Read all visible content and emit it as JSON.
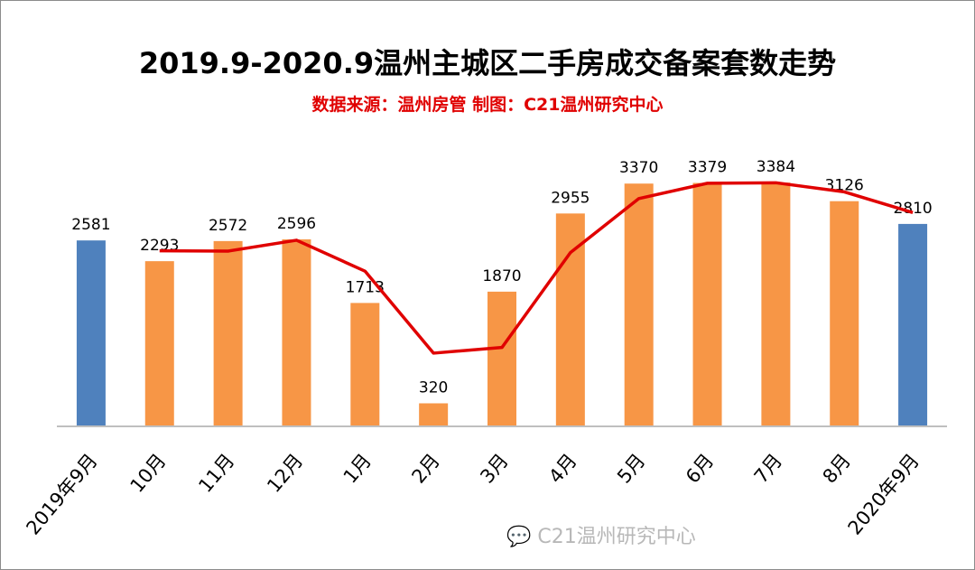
{
  "chart_data": {
    "type": "bar",
    "title": "2019.9-2020.9温州主城区二手房成交备案套数走势",
    "subtitle": "数据来源：温州房管  制图：C21温州研究中心",
    "categories": [
      "2019年9月",
      "10月",
      "11月",
      "12月",
      "1月",
      "2月",
      "3月",
      "4月",
      "5月",
      "6月",
      "7月",
      "8月",
      "2020年9月"
    ],
    "values": [
      2581,
      2293,
      2572,
      2596,
      1713,
      320,
      1870,
      2955,
      3370,
      3379,
      3384,
      3126,
      2810
    ],
    "bar_colors": [
      "#4f81bd",
      "#f79646",
      "#f79646",
      "#f79646",
      "#f79646",
      "#f79646",
      "#f79646",
      "#f79646",
      "#f79646",
      "#f79646",
      "#f79646",
      "#f79646",
      "#4f81bd"
    ],
    "trendline": {
      "type": "moving-average",
      "period": 2,
      "color": "#e00000"
    },
    "ylim": [
      0,
      4000
    ],
    "xlabel": "",
    "ylabel": "",
    "grid": false,
    "legend": "none"
  },
  "watermark": "C21温州研究中心"
}
